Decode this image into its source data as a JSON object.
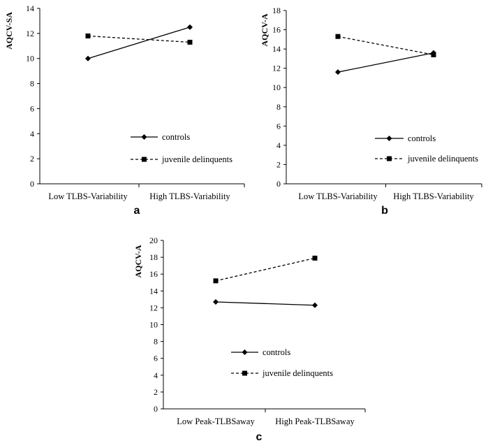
{
  "chart_data": [
    {
      "type": "line",
      "panel": "a",
      "title": "",
      "xlabel": "",
      "ylabel": "AQCV-SA",
      "ylim": [
        0,
        14
      ],
      "yticks": [
        0,
        2,
        4,
        6,
        8,
        10,
        12,
        14
      ],
      "categories": [
        "Low TLBS-Variability",
        "High TLBS-Variability"
      ],
      "legend_position": "bottom-right",
      "series": [
        {
          "name": "controls",
          "marker": "diamond",
          "line": "solid",
          "values": [
            10.0,
            12.5
          ]
        },
        {
          "name": "juvenile delinquents",
          "marker": "square",
          "line": "dashed",
          "values": [
            11.8,
            11.3
          ]
        }
      ]
    },
    {
      "type": "line",
      "panel": "b",
      "title": "",
      "xlabel": "",
      "ylabel": "AQCV-A",
      "ylim": [
        0,
        18
      ],
      "yticks": [
        0,
        2,
        4,
        6,
        8,
        10,
        12,
        14,
        16,
        18
      ],
      "categories": [
        "Low TLBS-Variability",
        "High TLBS-Variability"
      ],
      "legend_position": "bottom-right",
      "series": [
        {
          "name": "controls",
          "marker": "diamond",
          "line": "solid",
          "values": [
            11.6,
            13.6
          ]
        },
        {
          "name": "juvenile delinquents",
          "marker": "square",
          "line": "dashed",
          "values": [
            15.3,
            13.4
          ]
        }
      ]
    },
    {
      "type": "line",
      "panel": "c",
      "title": "",
      "xlabel": "",
      "ylabel": "AQCV-A",
      "ylim": [
        0,
        20
      ],
      "yticks": [
        0,
        2,
        4,
        6,
        8,
        10,
        12,
        14,
        16,
        18,
        20
      ],
      "categories": [
        "Low Peak-TLBSaway",
        "High Peak-TLBSaway"
      ],
      "legend_position": "bottom-right",
      "series": [
        {
          "name": "controls",
          "marker": "diamond",
          "line": "solid",
          "values": [
            12.7,
            12.3
          ]
        },
        {
          "name": "juvenile delinquents",
          "marker": "square",
          "line": "dashed",
          "values": [
            15.2,
            17.9
          ]
        }
      ]
    }
  ]
}
